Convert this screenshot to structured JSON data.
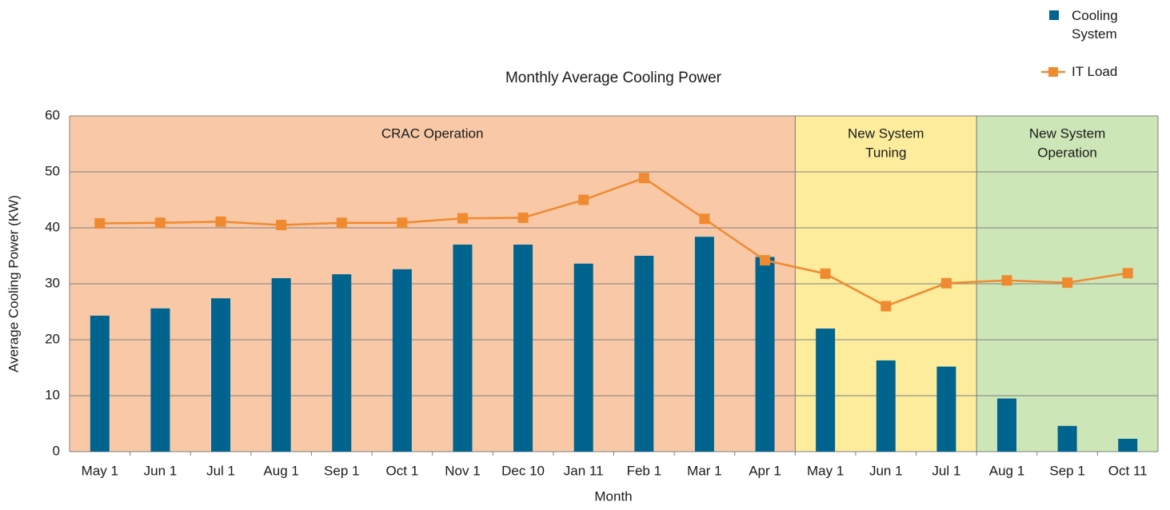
{
  "chart_data": {
    "type": "bar_line",
    "title": "Monthly Average Cooling Power",
    "x_label": "Month",
    "y_label": "Average Cooling Power (KW)",
    "categories": [
      "May 1",
      "Jun 1",
      "Jul 1",
      "Aug 1",
      "Sep 1",
      "Oct 1",
      "Nov 1",
      "Dec 10",
      "Jan 11",
      "Feb 1",
      "Mar 1",
      "Apr 1",
      "May 1",
      "Jun 1",
      "Jul 1",
      "Aug 1",
      "Sep 1",
      "Oct 11"
    ],
    "series": [
      {
        "name": "Cooling System",
        "type": "bar",
        "color": "#00648f",
        "values": [
          24.3,
          25.6,
          27.4,
          31,
          31.7,
          32.6,
          37,
          37,
          33.6,
          35,
          38.4,
          34.8,
          22,
          16.3,
          15.2,
          9.5,
          4.6,
          2.3
        ]
      },
      {
        "name": "IT Load",
        "type": "line",
        "color": "#f08a30",
        "values": [
          40.8,
          40.9,
          41.1,
          40.5,
          40.9,
          40.9,
          41.7,
          41.8,
          45,
          48.9,
          41.6,
          34.2,
          31.8,
          26,
          30.1,
          30.6,
          30.2,
          31.9
        ]
      }
    ],
    "regions": [
      {
        "label": [
          "CRAC Operation"
        ],
        "span": 12,
        "color": "#f8c8a7"
      },
      {
        "label": [
          "New System",
          "Tuning"
        ],
        "span": 3,
        "color": "#fcec9c"
      },
      {
        "label": [
          "New System",
          "Operation"
        ],
        "span": 3,
        "color": "#cde6b8"
      }
    ],
    "ylim": [
      0,
      60
    ],
    "yticks": [
      0,
      10,
      20,
      30,
      40,
      50,
      60
    ],
    "grid": true,
    "legend": "top-right"
  }
}
